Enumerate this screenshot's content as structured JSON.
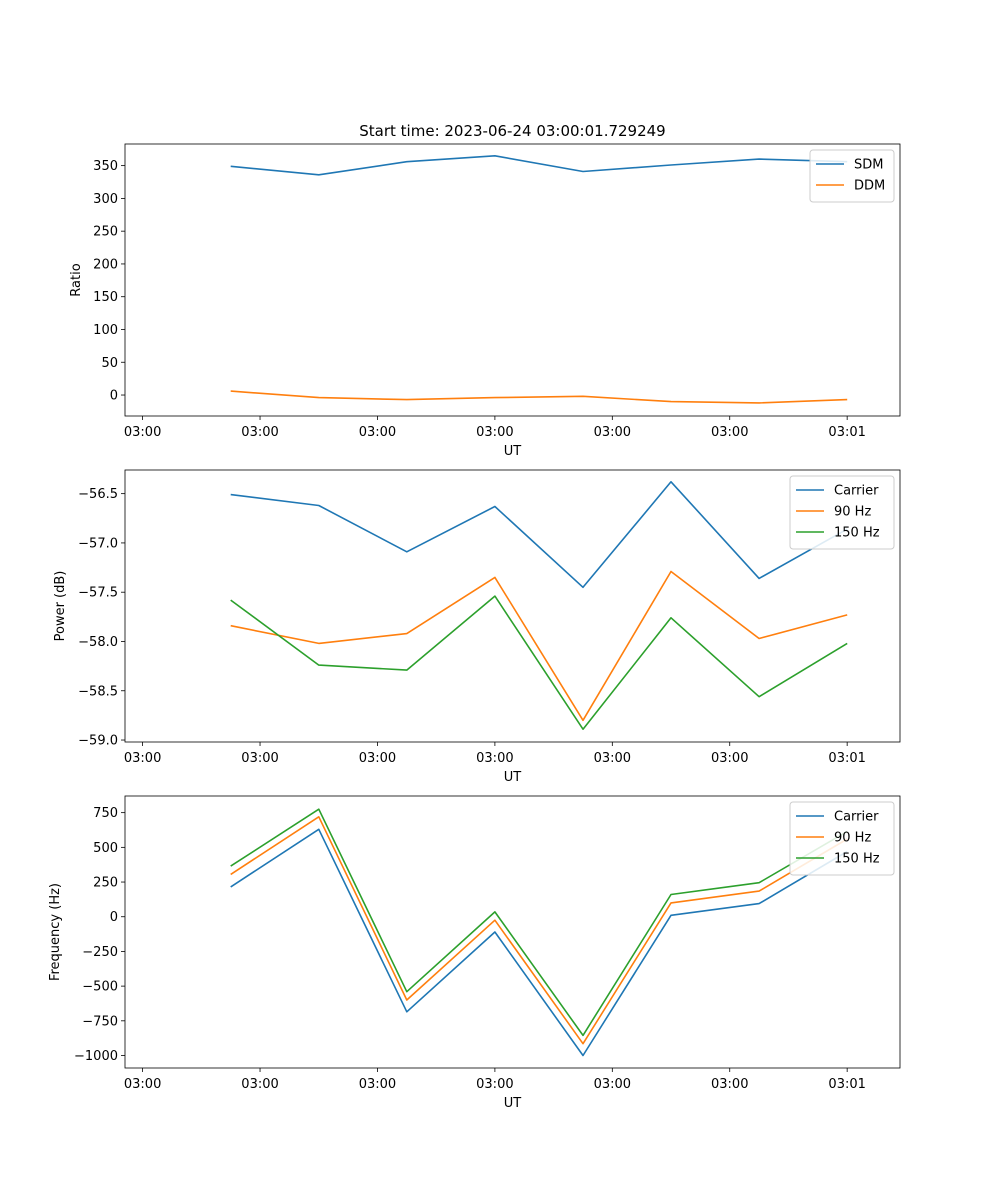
{
  "title": "Start time: 2023-06-24 03:00:01.729249",
  "chart_data": [
    {
      "type": "line",
      "ylabel": "Ratio",
      "xlabel": "UT",
      "x_ticks": [
        "03:00",
        "03:00",
        "03:00",
        "03:00",
        "03:00",
        "03:00",
        "03:01"
      ],
      "x_range": [
        -0.02,
        0.86
      ],
      "ylim": [
        -32,
        383
      ],
      "y_ticks": [
        0,
        50,
        100,
        150,
        200,
        250,
        300,
        350
      ],
      "legend_position": "upper right",
      "x": [
        0.1,
        0.2,
        0.3,
        0.4,
        0.5,
        0.6,
        0.7,
        0.8
      ],
      "series": [
        {
          "name": "SDM",
          "color": "#1f77b4",
          "values": [
            349,
            336,
            356,
            365,
            341,
            351,
            360,
            356
          ]
        },
        {
          "name": "DDM",
          "color": "#ff7f0e",
          "values": [
            6,
            -4,
            -7,
            -4,
            -2,
            -10,
            -12,
            -7
          ]
        }
      ]
    },
    {
      "type": "line",
      "ylabel": "Power (dB)",
      "xlabel": "UT",
      "x_ticks": [
        "03:00",
        "03:00",
        "03:00",
        "03:00",
        "03:00",
        "03:00",
        "03:01"
      ],
      "x_range": [
        -0.02,
        0.86
      ],
      "ylim": [
        -59.02,
        -56.26
      ],
      "y_ticks": [
        -59.0,
        -58.5,
        -58.0,
        -57.5,
        -57.0,
        -56.5
      ],
      "legend_position": "upper right",
      "x": [
        0.1,
        0.2,
        0.3,
        0.4,
        0.5,
        0.6,
        0.7,
        0.8
      ],
      "series": [
        {
          "name": "Carrier",
          "color": "#1f77b4",
          "values": [
            -56.51,
            -56.62,
            -57.09,
            -56.63,
            -57.45,
            -56.38,
            -57.36,
            -56.86
          ]
        },
        {
          "name": "90 Hz",
          "color": "#ff7f0e",
          "values": [
            -57.84,
            -58.02,
            -57.92,
            -57.35,
            -58.8,
            -57.29,
            -57.97,
            -57.73
          ]
        },
        {
          "name": "150 Hz",
          "color": "#2ca02c",
          "values": [
            -57.58,
            -58.24,
            -58.29,
            -57.54,
            -58.89,
            -57.76,
            -58.56,
            -58.02
          ]
        }
      ]
    },
    {
      "type": "line",
      "ylabel": "Frequency (Hz)",
      "xlabel": "UT",
      "x_ticks": [
        "03:00",
        "03:00",
        "03:00",
        "03:00",
        "03:00",
        "03:00",
        "03:01"
      ],
      "x_range": [
        -0.02,
        0.86
      ],
      "ylim": [
        -1090,
        870
      ],
      "y_ticks": [
        -1000,
        -750,
        -500,
        -250,
        0,
        250,
        500,
        750
      ],
      "legend_position": "upper right",
      "x": [
        0.1,
        0.2,
        0.3,
        0.4,
        0.5,
        0.6,
        0.7,
        0.8
      ],
      "series": [
        {
          "name": "Carrier",
          "color": "#1f77b4",
          "values": [
            215,
            630,
            -685,
            -110,
            -1000,
            10,
            95,
            470
          ]
        },
        {
          "name": "90 Hz",
          "color": "#ff7f0e",
          "values": [
            305,
            720,
            -600,
            -25,
            -915,
            100,
            185,
            560
          ]
        },
        {
          "name": "150 Hz",
          "color": "#2ca02c",
          "values": [
            365,
            775,
            -540,
            35,
            -855,
            160,
            245,
            615
          ]
        }
      ]
    }
  ]
}
